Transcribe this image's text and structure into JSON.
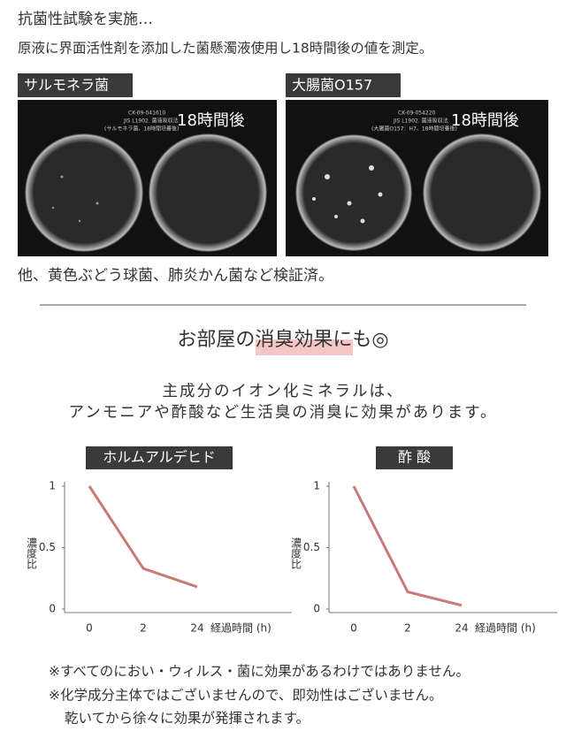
{
  "header": {
    "title": "抗菌性試験を実施…",
    "subtitle": "原液に界面活性剤を添加した菌懸濁液使用し18時間後の値を測定。"
  },
  "photos": [
    {
      "label": "サルモネラ菌",
      "code": "CK-09-041610",
      "method": "JIS L1902. 菌液吸収法",
      "note": "(サルモネラ菌、18時間培養後)",
      "time": "18時間後"
    },
    {
      "label": "大腸菌O157",
      "code": "CK-09-054220",
      "method": "JIS L1902. 菌液吸収法",
      "note": "(大腸菌O157：H7、18時間培養後)",
      "time": "18時間後"
    }
  ],
  "verified": "他、黄色ぶどう球菌、肺炎かん菌など検証済。",
  "section": {
    "heading": [
      "お部屋の",
      "消臭効果",
      "にも◎"
    ],
    "lines": [
      "主成分のイオン化ミネラルは、",
      "アンモニアや酢酸など生活臭の消臭に効果があります。"
    ]
  },
  "chart_data": [
    {
      "type": "line",
      "title": "ホルムアルデヒド",
      "x_label": "経過時間 (h)",
      "y_label": "濃度比",
      "categories": [
        "0",
        "2",
        "24"
      ],
      "values": [
        1,
        0.33,
        0.18
      ],
      "color": "#c97a78",
      "ylim": [
        0,
        1
      ],
      "yticks": [
        0,
        0.5,
        1
      ]
    },
    {
      "type": "line",
      "title": "酢 酸",
      "x_label": "経過時間 (h)",
      "y_label": "濃度比",
      "categories": [
        "0",
        "2",
        "24"
      ],
      "values": [
        1,
        0.14,
        0.03
      ],
      "color": "#c97a78",
      "ylim": [
        0,
        1
      ],
      "yticks": [
        0,
        0.5,
        1
      ]
    }
  ],
  "notes": [
    "※すべてのにおい・ウィルス・菌に効果があるわけではありません。",
    "※化学成分主体ではございませんので、即効性はございません。",
    "乾いてから徐々に効果が発揮されます。"
  ]
}
